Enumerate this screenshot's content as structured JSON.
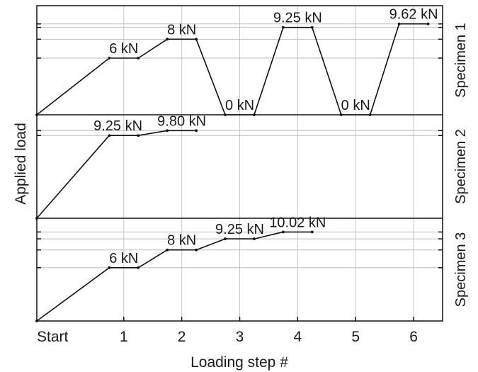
{
  "chart_data": {
    "type": "line",
    "xlabel": "Loading step #",
    "ylabel": "Applied load",
    "x_ticks": [
      {
        "value": 0,
        "label": "Start"
      },
      {
        "value": 1,
        "label": "1"
      },
      {
        "value": 2,
        "label": "2"
      },
      {
        "value": 3,
        "label": "3"
      },
      {
        "value": 4,
        "label": "4"
      },
      {
        "value": 5,
        "label": "5"
      },
      {
        "value": 6,
        "label": "6"
      }
    ],
    "xlim": [
      -0.5,
      6.5
    ],
    "grid": true,
    "panels": [
      {
        "name": "Specimen 1",
        "ylim": [
          0,
          11.25
        ],
        "levels": [
          6,
          8,
          9.25,
          9.62
        ],
        "points": [
          [
            -0.5,
            0
          ],
          [
            0.75,
            6
          ],
          [
            1.25,
            6
          ],
          [
            1.75,
            8
          ],
          [
            2.25,
            8
          ],
          [
            2.75,
            0
          ],
          [
            3.25,
            0
          ],
          [
            3.75,
            9.25
          ],
          [
            4.25,
            9.25
          ],
          [
            4.75,
            0
          ],
          [
            5.25,
            0
          ],
          [
            5.75,
            9.62
          ],
          [
            6.25,
            9.62
          ]
        ],
        "annotations": [
          {
            "text": "6 kN",
            "x": 1.0,
            "value": 6
          },
          {
            "text": "8 kN",
            "x": 2.0,
            "value": 8
          },
          {
            "text": "0 kN",
            "x": 3.0,
            "value": 0
          },
          {
            "text": "9.25 kN",
            "x": 4.0,
            "value": 9.25
          },
          {
            "text": "0 kN",
            "x": 5.0,
            "value": 0
          },
          {
            "text": "9.62 kN",
            "x": 6.0,
            "value": 9.62
          }
        ]
      },
      {
        "name": "Specimen 2",
        "ylim": [
          0,
          11.25
        ],
        "levels": [
          9.25,
          9.8
        ],
        "points": [
          [
            -0.5,
            0
          ],
          [
            0.75,
            9.25
          ],
          [
            1.25,
            9.25
          ],
          [
            1.75,
            9.8
          ],
          [
            2.25,
            9.8
          ]
        ],
        "annotations": [
          {
            "text": "9.25 kN",
            "x": 0.9,
            "value": 9.25
          },
          {
            "text": "9.80 kN",
            "x": 2.0,
            "value": 9.8
          }
        ]
      },
      {
        "name": "Specimen 3",
        "ylim": [
          0,
          11.25
        ],
        "levels": [
          6,
          8,
          9.25,
          10.02
        ],
        "points": [
          [
            -0.5,
            0
          ],
          [
            0.75,
            6
          ],
          [
            1.25,
            6
          ],
          [
            1.75,
            8
          ],
          [
            2.25,
            8
          ],
          [
            2.75,
            9.25
          ],
          [
            3.25,
            9.25
          ],
          [
            3.75,
            10.02
          ],
          [
            4.25,
            10.02
          ]
        ],
        "annotations": [
          {
            "text": "6 kN",
            "x": 1.0,
            "value": 6
          },
          {
            "text": "8 kN",
            "x": 2.0,
            "value": 8
          },
          {
            "text": "9.25 kN",
            "x": 3.0,
            "value": 9.25
          },
          {
            "text": "10.02 kN",
            "x": 4.0,
            "value": 10.02
          }
        ]
      }
    ]
  }
}
